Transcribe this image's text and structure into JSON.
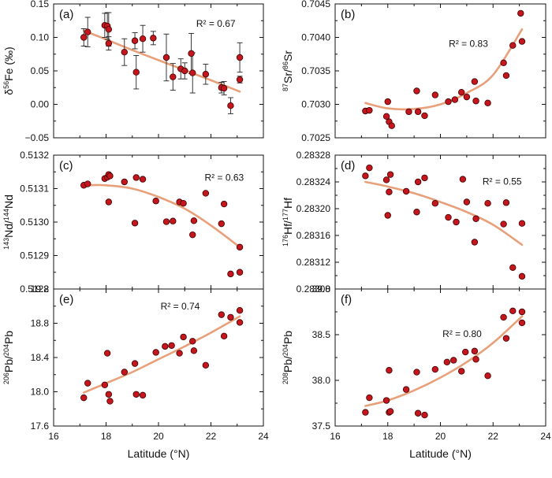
{
  "colors": {
    "point": "#c4161c",
    "point_edge": "#3a0000",
    "fit": "#e8a07a",
    "axis": "#111111"
  },
  "chart_data": [
    {
      "type": "scatter",
      "panel": "(a)",
      "ylabel": "δ⁵⁶Fe (‰)",
      "ylabel_parts": [
        {
          "t": "δ",
          "sup": false
        },
        {
          "t": "56",
          "sup": true
        },
        {
          "t": "Fe (‰)",
          "sup": false
        }
      ],
      "r2_label": "R² = 0.67",
      "xlim": [
        16,
        24
      ],
      "ylim": [
        -0.05,
        0.15
      ],
      "yticks": [
        -0.05,
        0.0,
        0.05,
        0.1,
        0.15
      ],
      "ytick_labels": [
        "−0.05",
        "0.00",
        "0.05",
        "0.10",
        "0.15"
      ],
      "xticks": [
        16,
        18,
        20,
        22,
        24
      ],
      "xtick_labels": [],
      "x": [
        17.15,
        17.3,
        17.95,
        18.05,
        18.1,
        18.1,
        18.7,
        19.1,
        19.15,
        19.4,
        19.8,
        20.3,
        20.55,
        20.85,
        21.0,
        21.25,
        21.3,
        21.8,
        22.4,
        22.5,
        22.75,
        23.1,
        23.1
      ],
      "y": [
        0.1,
        0.108,
        0.118,
        0.117,
        0.112,
        0.091,
        0.078,
        0.095,
        0.048,
        0.098,
        0.099,
        0.07,
        0.041,
        0.053,
        0.05,
        0.076,
        0.047,
        0.045,
        0.025,
        0.024,
        -0.002,
        0.07,
        0.037
      ],
      "yerr": [
        0.013,
        0.022,
        0.018,
        0.02,
        0.025,
        0.01,
        0.02,
        0.012,
        0.025,
        0.02,
        0.01,
        0.035,
        0.02,
        0.015,
        0.012,
        0.03,
        0.03,
        0.015,
        0.008,
        0.01,
        0.012,
        0.022,
        0.005
      ],
      "fit_x": [
        17.15,
        18,
        19,
        20,
        21,
        22,
        23.1
      ],
      "fit_y": [
        0.11,
        0.097,
        0.081,
        0.066,
        0.051,
        0.036,
        0.019
      ]
    },
    {
      "type": "scatter",
      "panel": "(b)",
      "ylabel": "⁸⁷Sr/⁸⁶Sr",
      "ylabel_parts": [
        {
          "t": "87",
          "sup": true
        },
        {
          "t": "Sr/",
          "sup": false
        },
        {
          "t": "86",
          "sup": true
        },
        {
          "t": "Sr",
          "sup": false
        }
      ],
      "r2_label": "R² = 0.83",
      "xlim": [
        16,
        24
      ],
      "ylim": [
        0.7025,
        0.7045
      ],
      "yticks": [
        0.7025,
        0.703,
        0.7035,
        0.704,
        0.7045
      ],
      "ytick_labels": [
        "0.7025",
        "0.7030",
        "0.7035",
        "0.7040",
        "0.7045"
      ],
      "xticks": [
        16,
        18,
        20,
        22,
        24
      ],
      "xtick_labels": [],
      "x": [
        17.15,
        17.3,
        17.95,
        18.0,
        18.05,
        18.15,
        18.8,
        19.1,
        19.15,
        19.4,
        19.8,
        20.3,
        20.55,
        20.8,
        21.0,
        21.3,
        21.35,
        21.8,
        22.4,
        22.5,
        22.75,
        23.05,
        23.1
      ],
      "y": [
        0.7029,
        0.70291,
        0.70282,
        0.70304,
        0.70274,
        0.70268,
        0.70289,
        0.7032,
        0.70289,
        0.70283,
        0.70314,
        0.70304,
        0.70307,
        0.70318,
        0.70311,
        0.70334,
        0.70305,
        0.70302,
        0.70362,
        0.70343,
        0.70388,
        0.70436,
        0.70394
      ],
      "fit_x": [
        17.15,
        18,
        19,
        20,
        21,
        22,
        23.1
      ],
      "fit_y": [
        0.70302,
        0.70294,
        0.70293,
        0.703,
        0.70317,
        0.70344,
        0.70412
      ]
    },
    {
      "type": "scatter",
      "panel": "(c)",
      "ylabel": "¹⁴³Nd/¹⁴⁴Nd",
      "ylabel_parts": [
        {
          "t": "143",
          "sup": true
        },
        {
          "t": "Nd/",
          "sup": false
        },
        {
          "t": "144",
          "sup": true
        },
        {
          "t": "Nd",
          "sup": false
        }
      ],
      "r2_label": "R² = 0.63",
      "xlim": [
        16,
        24
      ],
      "ylim": [
        0.5128,
        0.5132
      ],
      "yticks": [
        0.5128,
        0.5129,
        0.513,
        0.5131,
        0.5132
      ],
      "ytick_labels": [
        "0.5128",
        "0.5129",
        "0.5130",
        "0.5131",
        "0.5132"
      ],
      "xticks": [
        16,
        18,
        20,
        22,
        24
      ],
      "xtick_labels": [],
      "x": [
        17.15,
        17.3,
        17.95,
        18.05,
        18.1,
        18.15,
        18.1,
        18.7,
        19.1,
        19.15,
        19.4,
        19.9,
        20.3,
        20.55,
        20.8,
        20.95,
        21.3,
        21.35,
        21.8,
        22.4,
        22.5,
        22.75,
        23.1,
        23.1
      ],
      "y": [
        0.51311,
        0.513114,
        0.51313,
        0.513134,
        0.513142,
        0.513138,
        0.51306,
        0.51312,
        0.512997,
        0.513133,
        0.513128,
        0.513063,
        0.513001,
        0.513003,
        0.51306,
        0.513056,
        0.512962,
        0.513004,
        0.513086,
        0.512995,
        0.513054,
        0.512845,
        0.512925,
        0.51285
      ],
      "fit_x": [
        17.15,
        18,
        19,
        20,
        21,
        22,
        23.1
      ],
      "fit_y": [
        0.51311,
        0.51311,
        0.5131,
        0.513075,
        0.51304,
        0.51299,
        0.512925
      ]
    },
    {
      "type": "scatter",
      "panel": "(d)",
      "ylabel": "¹⁷⁶Hf/¹⁷⁷Hf",
      "ylabel_parts": [
        {
          "t": "176",
          "sup": true
        },
        {
          "t": "Hf/",
          "sup": false
        },
        {
          "t": "177",
          "sup": true
        },
        {
          "t": "Hf",
          "sup": false
        }
      ],
      "r2_label": "R² = 0.55",
      "xlim": [
        16,
        24
      ],
      "ylim": [
        0.28308,
        0.28328
      ],
      "yticks": [
        0.28308,
        0.28312,
        0.28316,
        0.2832,
        0.28324,
        0.28328
      ],
      "ytick_labels": [
        "0.28308",
        "0.28312",
        "0.28316",
        "0.28320",
        "0.28324",
        "0.28328"
      ],
      "xticks": [
        16,
        18,
        20,
        22,
        24
      ],
      "xtick_labels": [],
      "x": [
        17.15,
        17.3,
        17.95,
        18.0,
        18.05,
        18.1,
        18.7,
        19.1,
        19.15,
        19.4,
        19.8,
        20.3,
        20.6,
        20.85,
        21.0,
        21.3,
        21.35,
        21.8,
        22.4,
        22.5,
        22.75,
        23.1,
        23.1
      ],
      "y": [
        0.283249,
        0.283261,
        0.283243,
        0.28319,
        0.283225,
        0.283251,
        0.283226,
        0.283195,
        0.28324,
        0.283246,
        0.283208,
        0.283187,
        0.28318,
        0.283244,
        0.28321,
        0.28315,
        0.283185,
        0.283208,
        0.283177,
        0.283209,
        0.283112,
        0.283178,
        0.283099
      ],
      "fit_x": [
        17.15,
        18,
        19,
        20,
        21,
        22,
        23.1
      ],
      "fit_y": [
        0.28324,
        0.283233,
        0.283223,
        0.28321,
        0.283195,
        0.283176,
        0.283146
      ]
    },
    {
      "type": "scatter",
      "panel": "(e)",
      "ylabel": "²⁰⁶Pb/²⁰⁴Pb",
      "ylabel_parts": [
        {
          "t": "206",
          "sup": true
        },
        {
          "t": "Pb/",
          "sup": false
        },
        {
          "t": "204",
          "sup": true
        },
        {
          "t": "Pb",
          "sup": false
        }
      ],
      "r2_label": "R² = 0.74",
      "xlim": [
        16,
        24
      ],
      "ylim": [
        17.6,
        19.2
      ],
      "yticks": [
        17.6,
        18.0,
        18.4,
        18.8,
        19.2
      ],
      "ytick_labels": [
        "17.6",
        "18.0",
        "18.4",
        "18.8",
        "19.2"
      ],
      "xticks": [
        16,
        18,
        20,
        22,
        24
      ],
      "xtick_labels": [
        "16",
        "18",
        "20",
        "22",
        "24"
      ],
      "xlabel": "Latitude (°N)",
      "x": [
        17.15,
        17.3,
        17.95,
        18.05,
        18.1,
        18.15,
        18.7,
        19.1,
        19.15,
        19.4,
        19.9,
        20.25,
        20.5,
        20.8,
        20.95,
        21.3,
        21.35,
        21.8,
        22.4,
        22.5,
        22.75,
        23.1,
        23.1
      ],
      "y": [
        17.93,
        18.1,
        18.08,
        18.45,
        17.97,
        17.89,
        18.23,
        18.33,
        17.97,
        17.96,
        18.46,
        18.53,
        18.54,
        18.45,
        18.64,
        18.59,
        18.48,
        18.31,
        18.9,
        18.65,
        18.87,
        18.81,
        18.95
      ],
      "fit_x": [
        17.15,
        18,
        19,
        20,
        21,
        22,
        23.1
      ],
      "fit_y": [
        17.99,
        18.1,
        18.23,
        18.38,
        18.53,
        18.69,
        18.88
      ]
    },
    {
      "type": "scatter",
      "panel": "(f)",
      "ylabel": "²⁰⁸Pb/²⁰⁴Pb",
      "ylabel_parts": [
        {
          "t": "208",
          "sup": true
        },
        {
          "t": "Pb/",
          "sup": false
        },
        {
          "t": "204",
          "sup": true
        },
        {
          "t": "Pb",
          "sup": false
        }
      ],
      "r2_label": "R² = 0.80",
      "xlim": [
        16,
        24
      ],
      "ylim": [
        37.5,
        39.0
      ],
      "yticks": [
        37.5,
        38.0,
        38.5,
        39.0
      ],
      "ytick_labels": [
        "37.5",
        "38.0",
        "38.5",
        "39.0"
      ],
      "xticks": [
        16,
        18,
        20,
        22,
        24
      ],
      "xtick_labels": [
        "16",
        "18",
        "20",
        "22",
        "24"
      ],
      "xlabel": "Latitude (°N)",
      "x": [
        17.15,
        17.3,
        17.95,
        18.05,
        18.05,
        18.1,
        18.7,
        19.1,
        19.15,
        19.4,
        19.8,
        20.25,
        20.5,
        20.8,
        20.95,
        21.3,
        21.35,
        21.8,
        22.4,
        22.5,
        22.75,
        23.1,
        23.1
      ],
      "y": [
        37.65,
        37.81,
        37.78,
        38.11,
        37.65,
        37.66,
        37.9,
        38.09,
        37.64,
        37.62,
        38.12,
        38.2,
        38.22,
        38.1,
        38.31,
        38.32,
        38.23,
        38.05,
        38.69,
        38.46,
        38.76,
        38.63,
        38.75
      ],
      "fit_x": [
        17.15,
        18,
        19,
        20,
        21,
        22,
        23.1
      ],
      "fit_y": [
        37.72,
        37.78,
        37.89,
        38.03,
        38.2,
        38.41,
        38.7
      ]
    }
  ]
}
